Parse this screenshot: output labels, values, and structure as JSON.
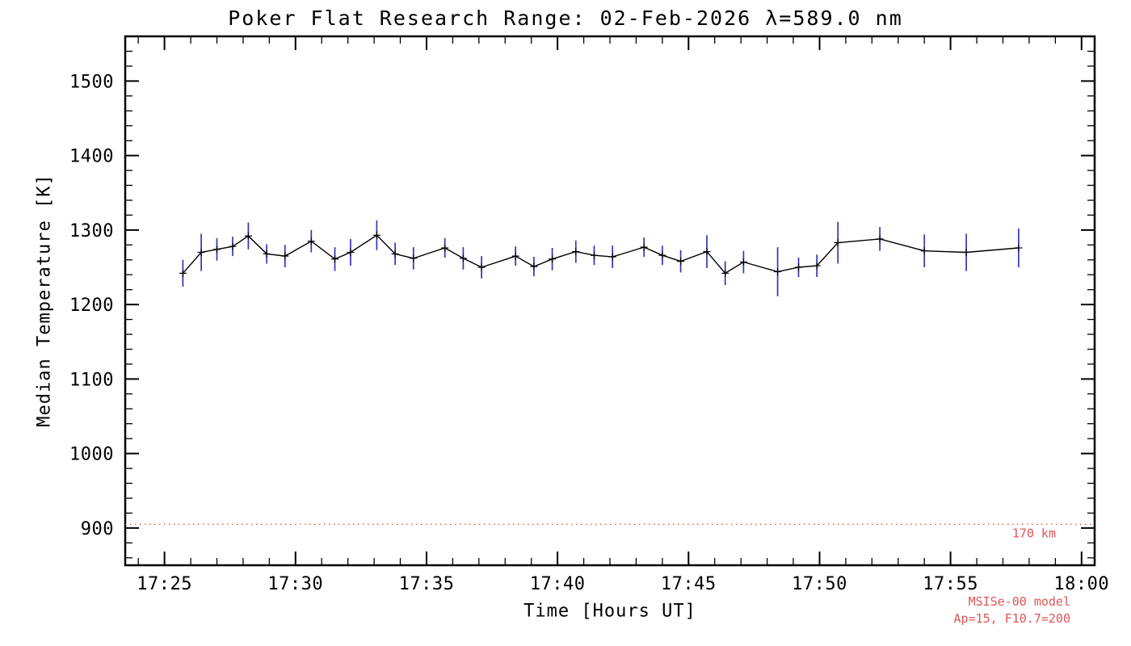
{
  "chart_data": {
    "type": "line",
    "title": "Poker Flat Research Range: 02-Feb-2026 λ=589.0 nm",
    "xlabel": "Time [Hours UT]",
    "ylabel": "Median Temperature [K]",
    "x_unit": "minutes after 17:00 UT",
    "xlim": [
      23.5,
      60.5
    ],
    "ylim": [
      850,
      1560
    ],
    "grid": false,
    "legend": false,
    "x_major_ticks": [
      {
        "value": 25,
        "label": "17:25"
      },
      {
        "value": 30,
        "label": "17:30"
      },
      {
        "value": 35,
        "label": "17:35"
      },
      {
        "value": 40,
        "label": "17:40"
      },
      {
        "value": 45,
        "label": "17:45"
      },
      {
        "value": 50,
        "label": "17:50"
      },
      {
        "value": 55,
        "label": "17:55"
      },
      {
        "value": 60,
        "label": "18:00"
      }
    ],
    "x_minor_step": 1,
    "y_major_ticks": [
      {
        "value": 900,
        "label": "900"
      },
      {
        "value": 1000,
        "label": "1000"
      },
      {
        "value": 1100,
        "label": "1100"
      },
      {
        "value": 1200,
        "label": "1200"
      },
      {
        "value": 1300,
        "label": "1300"
      },
      {
        "value": 1400,
        "label": "1400"
      },
      {
        "value": 1500,
        "label": "1500"
      }
    ],
    "y_minor_step": 20,
    "point_format": [
      "minutes_after_17UT",
      "temperature_K",
      "error_K"
    ],
    "series": [
      {
        "name": "median-temperature",
        "color": "#000000",
        "error_color": "#3535b8",
        "points": [
          [
            25.7,
            1242,
            18
          ],
          [
            26.4,
            1270,
            25
          ],
          [
            27.0,
            1274,
            15
          ],
          [
            27.6,
            1278,
            13
          ],
          [
            28.2,
            1292,
            18
          ],
          [
            28.9,
            1268,
            13
          ],
          [
            29.6,
            1265,
            15
          ],
          [
            30.6,
            1285,
            15
          ],
          [
            31.5,
            1261,
            16
          ],
          [
            32.1,
            1270,
            18
          ],
          [
            33.1,
            1293,
            20
          ],
          [
            33.8,
            1268,
            15
          ],
          [
            34.5,
            1262,
            15
          ],
          [
            35.7,
            1276,
            13
          ],
          [
            36.4,
            1262,
            15
          ],
          [
            37.1,
            1250,
            15
          ],
          [
            38.4,
            1265,
            13
          ],
          [
            39.1,
            1251,
            13
          ],
          [
            39.8,
            1261,
            15
          ],
          [
            40.7,
            1271,
            15
          ],
          [
            41.4,
            1266,
            13
          ],
          [
            42.1,
            1264,
            15
          ],
          [
            43.3,
            1277,
            13
          ],
          [
            44.0,
            1266,
            13
          ],
          [
            44.7,
            1258,
            15
          ],
          [
            45.7,
            1271,
            22
          ],
          [
            46.4,
            1242,
            16
          ],
          [
            47.1,
            1257,
            15
          ],
          [
            48.4,
            1244,
            33
          ],
          [
            49.2,
            1250,
            13
          ],
          [
            49.9,
            1252,
            15
          ],
          [
            50.7,
            1283,
            28
          ],
          [
            52.3,
            1288,
            16
          ],
          [
            54.0,
            1272,
            22
          ],
          [
            55.6,
            1270,
            25
          ],
          [
            57.6,
            1276,
            26
          ]
        ]
      }
    ],
    "reference_line": {
      "value": 905,
      "label": "170 km",
      "color": "#e05555",
      "style": "dotted"
    },
    "annotations": {
      "model": "MSISe-00 model",
      "params": "Ap=15, F10.7=200",
      "color": "#e05555"
    }
  }
}
